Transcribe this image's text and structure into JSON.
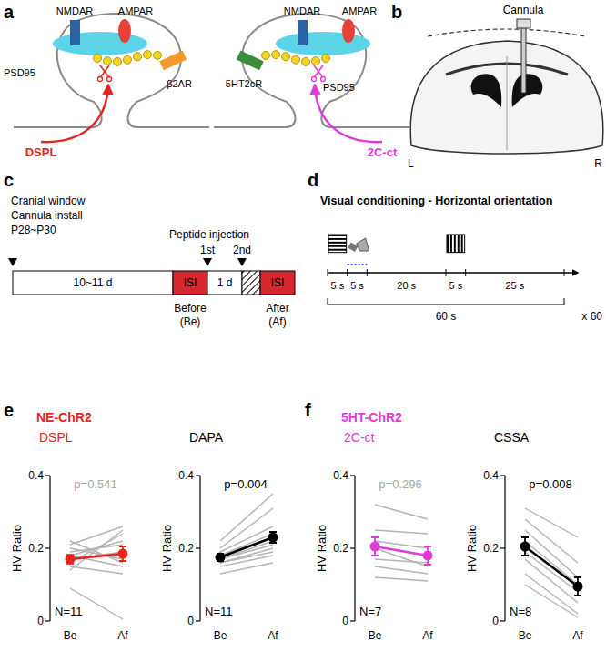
{
  "panels": {
    "a": {
      "letter": "a",
      "left": {
        "nmdar": "NMDAR",
        "ampar": "AMPAR",
        "psd": "PSD95",
        "receptor": "β2AR",
        "peptide": "DSPL",
        "color": "#e8231f"
      },
      "right": {
        "nmdar": "NMDAR",
        "ampar": "AMPAR",
        "psd": "PSD95",
        "receptor": "5HT2cR",
        "peptide": "2C-ct",
        "color": "#e03ad8"
      }
    },
    "b": {
      "letter": "b",
      "cannula": "Cannula",
      "left": "L",
      "right": "R"
    },
    "c": {
      "letter": "c",
      "start": [
        "Cranial window",
        "Cannula install",
        "P28~P30"
      ],
      "gap": "10~11 d",
      "isi": [
        "ISI",
        "ISI"
      ],
      "injection": "Peptide injection",
      "first": "1st",
      "second": "2nd",
      "interval": "1 d",
      "before": [
        "Before",
        "(Be)"
      ],
      "after": [
        "After",
        "(Af)"
      ]
    },
    "d": {
      "letter": "d",
      "title": "Visual conditioning - Horizontal orientation",
      "durations": [
        "5 s",
        "5 s",
        "20 s",
        "5 s",
        "25 s"
      ],
      "trial": "60 s",
      "repeats": "x 60"
    },
    "e": {
      "letter": "e",
      "heading": "NE-ChR2",
      "color": "#e8231f"
    },
    "f": {
      "letter": "f",
      "heading": "5HT-ChR2",
      "color": "#e03ad8"
    }
  },
  "chart_data": [
    {
      "type": "line",
      "title": "DSPL",
      "color": "#e8231f",
      "ylabel": "HV Ratio",
      "categories": [
        "Be",
        "Af"
      ],
      "ylim": [
        0,
        0.4
      ],
      "yticks": [
        0,
        0.2,
        0.4
      ],
      "annotations": [
        {
          "text": "p=0.541",
          "color": "#a6a6a6"
        },
        {
          "text": "N=11",
          "color": "#000000"
        }
      ],
      "series": [
        {
          "color": "#b3b3b3",
          "values": [
            0.09,
            0.005
          ]
        },
        {
          "color": "#b3b3b3",
          "values": [
            0.14,
            0.25
          ]
        },
        {
          "color": "#b3b3b3",
          "values": [
            0.15,
            0.13
          ]
        },
        {
          "color": "#b3b3b3",
          "values": [
            0.16,
            0.24
          ]
        },
        {
          "color": "#b3b3b3",
          "values": [
            0.17,
            0.19
          ]
        },
        {
          "color": "#b3b3b3",
          "values": [
            0.18,
            0.15
          ]
        },
        {
          "color": "#b3b3b3",
          "values": [
            0.18,
            0.22
          ]
        },
        {
          "color": "#b3b3b3",
          "values": [
            0.19,
            0.21
          ]
        },
        {
          "color": "#b3b3b3",
          "values": [
            0.2,
            0.17
          ]
        },
        {
          "color": "#b3b3b3",
          "values": [
            0.21,
            0.26
          ]
        },
        {
          "color": "#b3b3b3",
          "values": [
            0.22,
            0.16
          ]
        },
        {
          "color": "#e8231f",
          "values": [
            0.17,
            0.185
          ],
          "errors": [
            0.012,
            0.02
          ],
          "marker": "circle"
        }
      ]
    },
    {
      "type": "line",
      "title": "DAPA",
      "color": "#000000",
      "ylabel": "HV Ratio",
      "categories": [
        "Be",
        "Af"
      ],
      "ylim": [
        0,
        0.4
      ],
      "yticks": [
        0,
        0.2,
        0.4
      ],
      "annotations": [
        {
          "text": "p=0.004",
          "color": "#000000"
        },
        {
          "text": "N=11",
          "color": "#000000"
        }
      ],
      "series": [
        {
          "color": "#b3b3b3",
          "values": [
            0.13,
            0.16
          ]
        },
        {
          "color": "#b3b3b3",
          "values": [
            0.15,
            0.18
          ]
        },
        {
          "color": "#b3b3b3",
          "values": [
            0.16,
            0.19
          ]
        },
        {
          "color": "#b3b3b3",
          "values": [
            0.16,
            0.2
          ]
        },
        {
          "color": "#b3b3b3",
          "values": [
            0.17,
            0.21
          ]
        },
        {
          "color": "#b3b3b3",
          "values": [
            0.17,
            0.22
          ]
        },
        {
          "color": "#b3b3b3",
          "values": [
            0.18,
            0.23
          ]
        },
        {
          "color": "#b3b3b3",
          "values": [
            0.18,
            0.24
          ]
        },
        {
          "color": "#b3b3b3",
          "values": [
            0.19,
            0.26
          ]
        },
        {
          "color": "#b3b3b3",
          "values": [
            0.2,
            0.31
          ]
        },
        {
          "color": "#b3b3b3",
          "values": [
            0.22,
            0.35
          ]
        },
        {
          "color": "#000000",
          "values": [
            0.175,
            0.23
          ],
          "errors": [
            0.01,
            0.015
          ],
          "marker": "circle"
        }
      ]
    },
    {
      "type": "line",
      "title": "2C-ct",
      "color": "#e03ad8",
      "ylabel": "HV Ratio",
      "categories": [
        "Be",
        "Af"
      ],
      "ylim": [
        0,
        0.4
      ],
      "yticks": [
        0,
        0.2,
        0.4
      ],
      "annotations": [
        {
          "text": "p=0.296",
          "color": "#a6a6a6"
        },
        {
          "text": "N=7",
          "color": "#000000"
        }
      ],
      "series": [
        {
          "color": "#b3b3b3",
          "values": [
            0.12,
            0.11
          ]
        },
        {
          "color": "#b3b3b3",
          "values": [
            0.15,
            0.13
          ]
        },
        {
          "color": "#b3b3b3",
          "values": [
            0.17,
            0.16
          ]
        },
        {
          "color": "#b3b3b3",
          "values": [
            0.2,
            0.15
          ]
        },
        {
          "color": "#b3b3b3",
          "values": [
            0.22,
            0.2
          ]
        },
        {
          "color": "#b3b3b3",
          "values": [
            0.25,
            0.24
          ]
        },
        {
          "color": "#b3b3b3",
          "values": [
            0.32,
            0.28
          ]
        },
        {
          "color": "#e03ad8",
          "values": [
            0.205,
            0.18
          ],
          "errors": [
            0.025,
            0.025
          ],
          "marker": "circle"
        }
      ]
    },
    {
      "type": "line",
      "title": "CSSA",
      "color": "#000000",
      "ylabel": "HV Ratio",
      "categories": [
        "Be",
        "Af"
      ],
      "ylim": [
        0,
        0.4
      ],
      "yticks": [
        0,
        0.2,
        0.4
      ],
      "annotations": [
        {
          "text": "p=0.008",
          "color": "#000000"
        },
        {
          "text": "N=8",
          "color": "#000000"
        }
      ],
      "series": [
        {
          "color": "#b3b3b3",
          "values": [
            0.1,
            0.01
          ]
        },
        {
          "color": "#b3b3b3",
          "values": [
            0.13,
            0.02
          ]
        },
        {
          "color": "#b3b3b3",
          "values": [
            0.17,
            0.05
          ]
        },
        {
          "color": "#b3b3b3",
          "values": [
            0.19,
            0.08
          ]
        },
        {
          "color": "#b3b3b3",
          "values": [
            0.22,
            0.1
          ]
        },
        {
          "color": "#b3b3b3",
          "values": [
            0.25,
            0.12
          ]
        },
        {
          "color": "#b3b3b3",
          "values": [
            0.28,
            0.16
          ]
        },
        {
          "color": "#b3b3b3",
          "values": [
            0.31,
            0.23
          ]
        },
        {
          "color": "#000000",
          "values": [
            0.205,
            0.095
          ],
          "errors": [
            0.025,
            0.025
          ],
          "marker": "circle"
        }
      ]
    }
  ]
}
